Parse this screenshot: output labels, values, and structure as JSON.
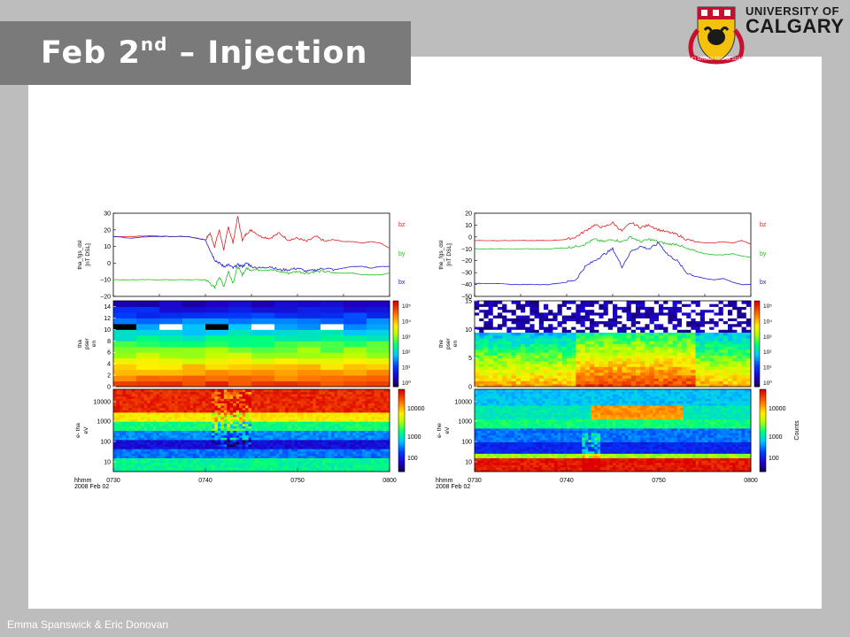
{
  "slide": {
    "title_main": "Feb 2",
    "title_sup": "nd",
    "title_rest": " – Injection",
    "footer": "Emma Spanswick & Eric Donovan"
  },
  "logo": {
    "line1": "UNIVERSITY OF",
    "line2": "CALGARY",
    "motto": "MO SHÙILE TOGAM SUAS"
  },
  "colors": {
    "bz": "#e02020",
    "by": "#20c020",
    "bx": "#2020d0"
  },
  "chart_data": [
    {
      "type": "line",
      "panel": "tha-magnetic-field",
      "ylabel": [
        "tha_fgs_dsl",
        "[nT DSL]"
      ],
      "ylim": [
        -20,
        30
      ],
      "yticks": [
        30,
        20,
        10,
        0,
        -10,
        -20
      ],
      "xlim": [
        "07:30",
        "08:00"
      ],
      "series": [
        {
          "name": "bz",
          "x": [
            30,
            32,
            34,
            36,
            38,
            40,
            40.5,
            41,
            41.5,
            42,
            42.5,
            43,
            43.5,
            44,
            44.5,
            45,
            46,
            47,
            48,
            49,
            50,
            51,
            52,
            53,
            54,
            55,
            56,
            57,
            58,
            59,
            60
          ],
          "values": [
            16,
            16,
            16.5,
            16,
            16,
            14,
            18,
            10,
            20,
            8,
            22,
            12,
            28,
            14,
            18,
            20,
            16,
            15,
            18,
            14,
            15,
            13,
            16,
            13,
            14,
            13,
            13,
            12,
            13,
            12,
            9
          ]
        },
        {
          "name": "by",
          "x": [
            30,
            32,
            34,
            36,
            38,
            40,
            40.5,
            41,
            41.5,
            42,
            42.5,
            43,
            43.5,
            44,
            44.5,
            45,
            46,
            47,
            48,
            49,
            50,
            51,
            52,
            53,
            54,
            55,
            56,
            57,
            58,
            59,
            60
          ],
          "values": [
            -10,
            -10,
            -10,
            -10,
            -10,
            -10,
            -12,
            -15,
            -8,
            -14,
            -5,
            -12,
            -2,
            -7,
            -3,
            -4,
            -4,
            -4,
            -5,
            -6,
            -5,
            -6,
            -5,
            -5,
            -6,
            -6,
            -6,
            -7,
            -7,
            -7,
            -6
          ]
        },
        {
          "name": "bx",
          "x": [
            30,
            32,
            34,
            36,
            38,
            39,
            40,
            40.5,
            41,
            41.5,
            42,
            42.5,
            43,
            43.5,
            44,
            44.5,
            45,
            46,
            47,
            48,
            49,
            50,
            51,
            52,
            53,
            54,
            55,
            56,
            57,
            58,
            59,
            60
          ],
          "values": [
            16,
            15,
            16,
            16,
            16,
            15,
            14,
            8,
            2,
            0,
            -2,
            -1,
            -3,
            -1,
            -2,
            0,
            -2,
            -3,
            -2,
            -4,
            -4,
            -3,
            -5,
            -4,
            -3,
            -4,
            -3,
            -2,
            -2,
            -3,
            -2,
            -2
          ]
        }
      ]
    },
    {
      "type": "line",
      "panel": "the-magnetic-field",
      "ylabel": [
        "the_fgs_dsl",
        "[nT DSL]"
      ],
      "ylim": [
        -50,
        20
      ],
      "yticks": [
        20,
        10,
        0,
        -10,
        -20,
        -30,
        -40,
        -50
      ],
      "xlim": [
        "07:30",
        "08:00"
      ],
      "series": [
        {
          "name": "bz",
          "x": [
            30,
            32,
            34,
            36,
            38,
            40,
            41,
            42,
            43,
            44,
            45,
            46,
            47,
            48,
            49,
            50,
            51,
            52,
            53,
            54,
            55,
            56,
            57,
            58,
            59,
            60
          ],
          "values": [
            -3,
            -3,
            -3,
            -3,
            -3,
            -2,
            0,
            5,
            10,
            8,
            12,
            5,
            12,
            8,
            10,
            6,
            4,
            2,
            -2,
            -4,
            -5,
            -5,
            -4,
            -5,
            -3,
            -6
          ]
        },
        {
          "name": "by",
          "x": [
            30,
            32,
            34,
            36,
            38,
            40,
            41,
            42,
            43,
            44,
            45,
            46,
            47,
            48,
            49,
            50,
            51,
            52,
            53,
            54,
            55,
            56,
            57,
            58,
            59,
            60
          ],
          "values": [
            -10,
            -10,
            -10,
            -10,
            -10,
            -9,
            -8,
            -6,
            -2,
            -4,
            -2,
            -4,
            0,
            -4,
            -2,
            -4,
            -6,
            -6,
            -10,
            -12,
            -14,
            -15,
            -15,
            -14,
            -16,
            -17
          ]
        },
        {
          "name": "bx",
          "x": [
            30,
            32,
            34,
            36,
            38,
            40,
            41,
            42,
            43,
            44,
            45,
            46,
            47,
            48,
            49,
            50,
            51,
            52,
            53,
            54,
            55,
            56,
            57,
            58,
            59,
            60
          ],
          "values": [
            -39,
            -39,
            -40,
            -40,
            -40,
            -38,
            -36,
            -25,
            -20,
            -15,
            -10,
            -25,
            -12,
            -8,
            -10,
            -5,
            -15,
            -20,
            -30,
            -33,
            -35,
            -36,
            -35,
            -38,
            -40,
            -40
          ]
        }
      ]
    },
    {
      "type": "heatmap",
      "panel": "tha-pser",
      "ylabel": [
        "tha",
        "pser",
        "en"
      ],
      "ylim": [
        0,
        15
      ],
      "yticks": [
        14,
        12,
        10,
        8,
        6,
        4,
        2,
        0
      ],
      "colorbar": {
        "ticks": [
          "10⁵",
          "10⁴",
          "10³",
          "10²",
          "10¹",
          "10⁰"
        ]
      },
      "xlim": [
        "07:30",
        "08:00"
      ]
    },
    {
      "type": "heatmap",
      "panel": "the-pser",
      "ylabel": [
        "the",
        "pser",
        "en"
      ],
      "ylim": [
        0,
        15
      ],
      "yticks": [
        15,
        10,
        5,
        0
      ],
      "colorbar": {
        "ticks": [
          "10⁵",
          "10⁴",
          "10³",
          "10²",
          "10¹",
          "10⁰"
        ]
      },
      "xlim": [
        "07:30",
        "08:00"
      ]
    },
    {
      "type": "heatmap",
      "panel": "tha-electron-spectrogram",
      "ylabel": [
        "e- tha",
        "eV"
      ],
      "scale": "log",
      "yticks": [
        "10000",
        "1000",
        "100",
        "10"
      ],
      "colorbar": {
        "ticks": [
          "10000",
          "1000",
          "100"
        ]
      },
      "xticks": [
        "0730",
        "0740",
        "0750",
        "0800"
      ],
      "xlabel": [
        "hhmm",
        "2008 Feb 02"
      ]
    },
    {
      "type": "heatmap",
      "panel": "the-electron-spectrogram",
      "ylabel": [
        "e- the",
        "eV"
      ],
      "scale": "log",
      "yticks": [
        "10000",
        "1000",
        "100",
        "10"
      ],
      "colorbar": {
        "ticks": [
          "10000",
          "1000",
          "100"
        ],
        "label": "Counts"
      },
      "xticks": [
        "0730",
        "0740",
        "0750",
        "0800"
      ],
      "xlabel": [
        "hhmm",
        "2008 Feb 02"
      ]
    }
  ]
}
